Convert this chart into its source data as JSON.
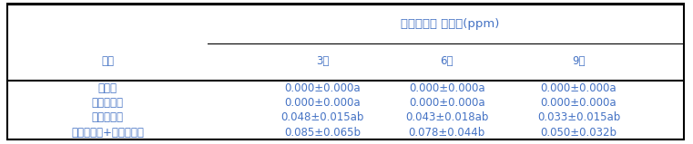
{
  "title_main": "펜디메탈린 잔류량(ppm)",
  "col_header_left": "처리",
  "col_headers": [
    "3주",
    "6주",
    "9주"
  ],
  "rows": [
    {
      "label": "무처리",
      "values": [
        "0.000±0.000a",
        "0.000±0.000a",
        "0.000±0.000a"
      ]
    },
    {
      "label": "액상멀칭제",
      "values": [
        "0.000±0.000a",
        "0.000±0.000a",
        "0.000±0.000a"
      ]
    },
    {
      "label": "펜디메탈린",
      "values": [
        "0.048±0.015ab",
        "0.043±0.018ab",
        "0.033±0.015ab"
      ]
    },
    {
      "label": "펜디메탈린+액상멀칭제",
      "values": [
        "0.085±0.065b",
        "0.078±0.044b",
        "0.050±0.032b"
      ]
    }
  ],
  "text_color": "#4472C4",
  "border_color": "#000000",
  "bg_color": "#FFFFFF",
  "font_size": 8.5,
  "header_font_size": 9.5,
  "figsize": [
    7.61,
    1.59
  ],
  "dpi": 100
}
